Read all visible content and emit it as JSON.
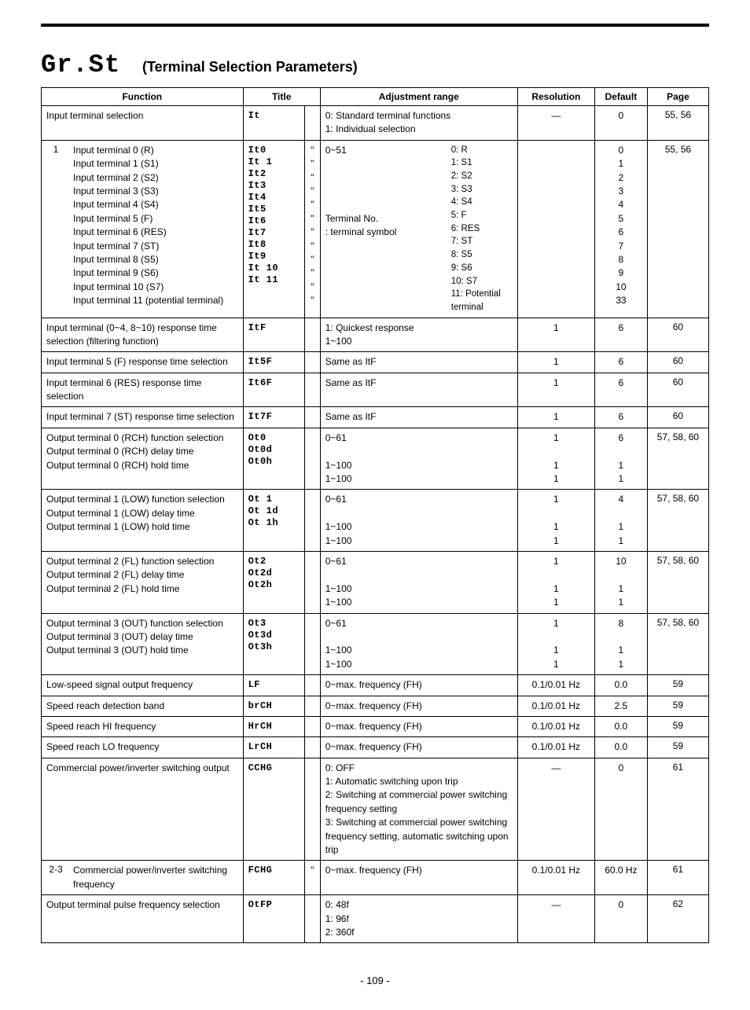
{
  "header": {
    "code": "Gr.St",
    "title": "(Terminal Selection Parameters)"
  },
  "columns": {
    "function": "Function",
    "title": "Title",
    "adjustment": "Adjustment range",
    "resolution": "Resolution",
    "default": "Default",
    "page": "Page"
  },
  "rows": {
    "r0": {
      "function": "Input terminal selection",
      "title": "It",
      "adjustment": "0: Standard terminal functions\n1: Individual selection",
      "resolution": "—",
      "default": "0",
      "page": "55, 56"
    },
    "r1": {
      "num": "1",
      "functions": "Input terminal 0 (R)\nInput terminal 1 (S1)\nInput terminal 2 (S2)\nInput terminal 3 (S3)\nInput terminal 4 (S4)\nInput terminal 5 (F)\nInput terminal 6 (RES)\nInput terminal 7 (ST)\nInput terminal 8 (S5)\nInput terminal 9 (S6)\nInput terminal 10 (S7)\nInput terminal 11 (potential terminal)",
      "titles": "It0\nIt 1\nIt2\nIt3\nIt4\nIt5\nIt6\nIt7\nIt8\nIt9\nIt 10\nIt 11",
      "marks": "\"\n\"\n\"\n\"\n\"\n\"\n\"\n\"\n\"\n\"\n\"\n\"",
      "adj_left": "0~51\n\n\n\n\nTerminal No.\n: terminal symbol",
      "adj_right": "0: R\n1: S1\n2: S2\n3: S3\n4: S4\n5: F\n6: RES\n7: ST\n8: S5\n9: S6\n10: S7\n11: Potential terminal",
      "defaults": "0\n1\n2\n3\n4\n5\n6\n7\n8\n9\n10\n33",
      "page": "55, 56"
    },
    "r2": {
      "function": "Input terminal (0~4, 8~10) response time selection (filtering function)",
      "title": "ItF",
      "adjustment": "1: Quickest response\n1~100",
      "resolution": "1",
      "default": "6",
      "page": "60"
    },
    "r3": {
      "function": "Input terminal 5 (F) response time selection",
      "title": "It5F",
      "adjustment": "Same as ItF",
      "resolution": "1",
      "default": "6",
      "page": "60"
    },
    "r4": {
      "function": "Input terminal 6 (RES) response time selection",
      "title": "It6F",
      "adjustment": "Same as ItF",
      "resolution": "1",
      "default": "6",
      "page": "60"
    },
    "r5": {
      "function": "Input terminal 7 (ST) response time selection",
      "title": "It7F",
      "adjustment": "Same as ItF",
      "resolution": "1",
      "default": "6",
      "page": "60"
    },
    "r6": {
      "function": "Output terminal 0 (RCH) function selection\nOutput terminal 0 (RCH) delay time\nOutput terminal 0 (RCH) hold time",
      "title": "Ot0\nOt0d\nOt0h",
      "adjustment": "0~61\n\n1~100\n1~100",
      "resolution": "1\n\n1\n1",
      "default": "6\n\n1\n1",
      "page": "57, 58, 60"
    },
    "r7": {
      "function": "Output terminal 1 (LOW) function selection\nOutput terminal 1 (LOW) delay time\nOutput terminal 1 (LOW) hold time",
      "title": "Ot 1\nOt 1d\nOt 1h",
      "adjustment": "0~61\n\n1~100\n1~100",
      "resolution": "1\n\n1\n1",
      "default": "4\n\n1\n1",
      "page": "57, 58, 60"
    },
    "r8": {
      "function": "Output terminal 2 (FL) function selection\nOutput terminal 2 (FL) delay time\nOutput terminal 2 (FL) hold time",
      "title": "Ot2\nOt2d\nOt2h",
      "adjustment": "0~61\n\n1~100\n1~100",
      "resolution": "1\n\n1\n1",
      "default": "10\n\n1\n1",
      "page": "57, 58, 60"
    },
    "r9": {
      "function": "Output terminal 3 (OUT) function selection\nOutput terminal 3 (OUT) delay time\nOutput terminal 3 (OUT) hold time",
      "title": "Ot3\nOt3d\nOt3h",
      "adjustment": "0~61\n\n1~100\n1~100",
      "resolution": "1\n\n1\n1",
      "default": "8\n\n1\n1",
      "page": "57, 58, 60"
    },
    "r10": {
      "function": "Low-speed signal output frequency",
      "title": "LF",
      "adjustment": "0~max. frequency (FH)",
      "resolution": "0.1/0.01 Hz",
      "default": "0.0",
      "page": "59"
    },
    "r11": {
      "function": "Speed reach detection band",
      "title": "brCH",
      "adjustment": "0~max. frequency (FH)",
      "resolution": "0.1/0.01 Hz",
      "default": "2.5",
      "page": "59"
    },
    "r12": {
      "function": "Speed reach HI frequency",
      "title": "HrCH",
      "adjustment": "0~max. frequency (FH)",
      "resolution": "0.1/0.01 Hz",
      "default": "0.0",
      "page": "59"
    },
    "r13": {
      "function": "Speed reach LO frequency",
      "title": "LrCH",
      "adjustment": "0~max. frequency (FH)",
      "resolution": "0.1/0.01 Hz",
      "default": "0.0",
      "page": "59"
    },
    "r14": {
      "function": "Commercial power/inverter switching output",
      "title": "CCHG",
      "adjustment": "0: OFF\n1: Automatic switching upon trip\n2: Switching at commercial power switching frequency setting\n3: Switching at commercial power switching frequency setting, automatic switching upon trip",
      "resolution": "—",
      "default": "0",
      "page": "61"
    },
    "r15": {
      "num": "2-3",
      "function": "Commercial power/inverter switching frequency",
      "title": "FCHG",
      "mark": "\"",
      "adjustment": "0~max. frequency (FH)",
      "resolution": "0.1/0.01 Hz",
      "default": "60.0 Hz",
      "page": "61"
    },
    "r16": {
      "function": "Output terminal pulse frequency selection",
      "title": "OtFP",
      "adjustment": "0: 48f\n1: 96f\n2: 360f",
      "resolution": "—",
      "default": "0",
      "page": "62"
    }
  },
  "pageno": "- 109 -"
}
